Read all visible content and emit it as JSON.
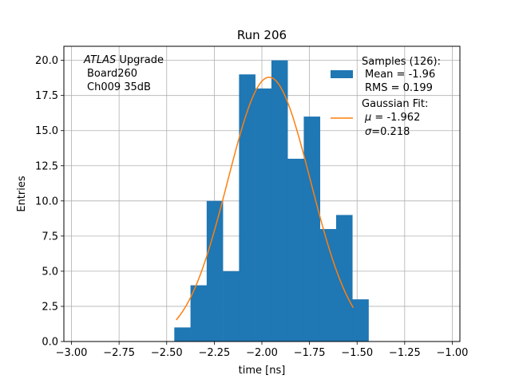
{
  "chart_data": {
    "type": "bar",
    "title": "Run 206",
    "xlabel": "time [ns]",
    "ylabel": "Entries",
    "xlim": [
      -3.04,
      -0.96
    ],
    "ylim": [
      0,
      21
    ],
    "x_ticks": [
      "-3.00",
      "-2.75",
      "-2.50",
      "-2.25",
      "-2.00",
      "-1.75",
      "-1.50",
      "-1.25",
      "-1.00"
    ],
    "x_tick_values": [
      -3.0,
      -2.75,
      -2.5,
      -2.25,
      -2.0,
      -1.75,
      -1.5,
      -1.25,
      -1.0
    ],
    "y_ticks": [
      "0.0",
      "2.5",
      "5.0",
      "7.5",
      "10.0",
      "12.5",
      "15.0",
      "17.5",
      "20.0"
    ],
    "y_tick_values": [
      0,
      2.5,
      5,
      7.5,
      10,
      12.5,
      15,
      17.5,
      20
    ],
    "grid": true,
    "histogram": {
      "bin_edges": [
        -2.46,
        -2.375,
        -2.29,
        -2.205,
        -2.12,
        -2.035,
        -1.95,
        -1.865,
        -1.78,
        -1.695,
        -1.61,
        -1.525,
        -1.44
      ],
      "counts": [
        1,
        4,
        10,
        5,
        19,
        18,
        20,
        13,
        16,
        8,
        9,
        3
      ],
      "color": "#1f77b4"
    },
    "fit_curve": {
      "amplitude": 18.8,
      "mu": -1.962,
      "sigma": 0.218,
      "x_range": [
        -2.45,
        -1.52
      ],
      "color": "#ff7f0e"
    },
    "annotation": {
      "line1_italic": "ATLAS",
      "line1_rest": " Upgrade",
      "line2": "Board260",
      "line3": "Ch009 35dB"
    },
    "legend": {
      "placement": "top-right",
      "samples": {
        "line1": "Samples (126):",
        "line2": "Mean = -1.96",
        "line3": "RMS = 0.199"
      },
      "fit": {
        "line1": "Gaussian Fit:",
        "line2_sym": "μ",
        "line2_rest": " = -1.962",
        "line3_sym": "σ",
        "line3_rest": "=0.218"
      }
    }
  }
}
